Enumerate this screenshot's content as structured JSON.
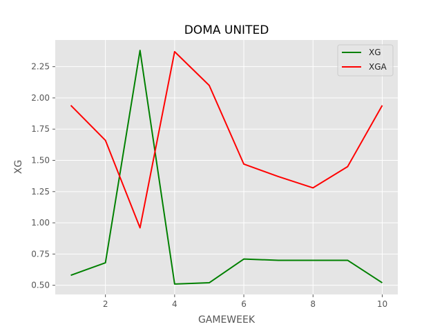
{
  "chart_data": {
    "type": "line",
    "title": "DOMA UNITED",
    "xlabel": "GAMEWEEK",
    "ylabel": "XG",
    "x": [
      1,
      2,
      3,
      4,
      5,
      6,
      7,
      8,
      9,
      10
    ],
    "series": [
      {
        "name": "XG",
        "color": "#008000",
        "values": [
          0.58,
          0.68,
          2.38,
          0.51,
          0.52,
          0.71,
          0.7,
          0.7,
          0.7,
          0.52
        ]
      },
      {
        "name": "XGA",
        "color": "#ff0000",
        "values": [
          1.94,
          1.66,
          0.96,
          2.37,
          2.1,
          1.47,
          1.37,
          1.28,
          1.45,
          1.94
        ]
      }
    ],
    "xlim": [
      0.55,
      10.45
    ],
    "ylim": [
      0.4265,
      2.4635
    ],
    "xticks": [
      2,
      4,
      6,
      8,
      10
    ],
    "xtick_labels": [
      "2",
      "4",
      "6",
      "8",
      "10"
    ],
    "yticks": [
      0.5,
      0.75,
      1.0,
      1.25,
      1.5,
      1.75,
      2.0,
      2.25
    ],
    "ytick_labels": [
      "0.50",
      "0.75",
      "1.00",
      "1.25",
      "1.50",
      "1.75",
      "2.00",
      "2.25"
    ],
    "grid": true,
    "legend_position": "top-right",
    "background_color": "#e5e5e5",
    "grid_color": "#ffffff"
  }
}
